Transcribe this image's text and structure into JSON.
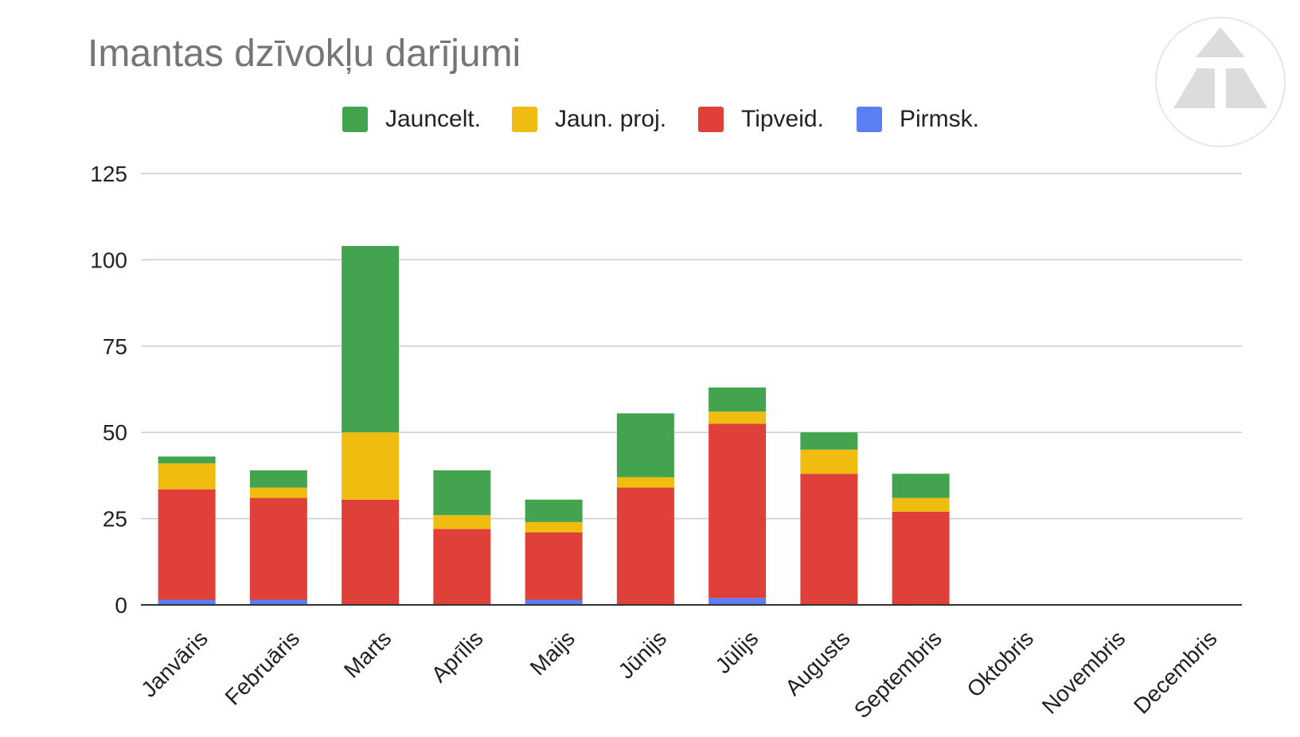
{
  "chart_data": {
    "type": "bar",
    "stacked": true,
    "title": "Imantas dzīvokļu darījumi",
    "xlabel": "",
    "ylabel": "",
    "ylim": [
      0,
      125
    ],
    "yticks": [
      0,
      25,
      50,
      75,
      100,
      125
    ],
    "grid": true,
    "legend_position": "top",
    "categories": [
      "Janvāris",
      "Februāris",
      "Marts",
      "Aprīlis",
      "Maijs",
      "Jūnijs",
      "Jūlijs",
      "Augusts",
      "Septembris",
      "Oktobris",
      "Novembris",
      "Decembris"
    ],
    "series": [
      {
        "name": "Pirmsk.",
        "color": "#5b7ff2",
        "values": [
          1.5,
          1.5,
          0,
          0,
          1.5,
          0,
          2,
          0,
          0,
          0,
          0,
          0
        ]
      },
      {
        "name": "Tipveid.",
        "color": "#e0403a",
        "values": [
          32,
          29.5,
          30.5,
          22,
          19.5,
          34,
          50.5,
          38,
          27,
          0,
          0,
          0
        ]
      },
      {
        "name": "Jaun. proj.",
        "color": "#f1bc10",
        "values": [
          7.5,
          3,
          19.5,
          4,
          3,
          3,
          3.5,
          7,
          4,
          0,
          0,
          0
        ]
      },
      {
        "name": "Jauncelt.",
        "color": "#43a34f",
        "values": [
          2,
          5,
          54,
          13,
          6.5,
          18.5,
          7,
          5,
          7,
          0,
          0,
          0
        ]
      }
    ]
  },
  "legend": {
    "items": [
      {
        "label": "Jauncelt.",
        "color": "#43a34f"
      },
      {
        "label": "Jaun. proj.",
        "color": "#f1bc10"
      },
      {
        "label": "Tipveid.",
        "color": "#e0403a"
      },
      {
        "label": "Pirmsk.",
        "color": "#5b7ff2"
      }
    ]
  },
  "logo": {
    "icon": "triangle-logo-icon",
    "color": "#dcdcdc"
  }
}
